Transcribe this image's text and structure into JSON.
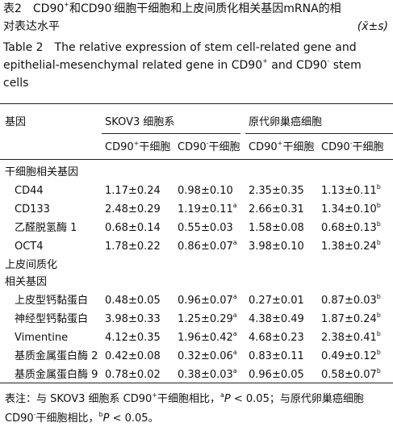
{
  "caption_cn": [
    [
      {
        "text": "表2　CD90"
      },
      {
        "sup": "+"
      },
      {
        "text": "和CD90"
      },
      {
        "sup": "-"
      },
      {
        "text": "细胞干细胞和上皮间质化相关基因mRNA的相"
      }
    ],
    [
      {
        "text": "对表达水平"
      }
    ]
  ],
  "stat": "(x̄±s)",
  "caption_en": [
    [
      {
        "text": "Table 2　The relative expression of stem cell-related gene and"
      }
    ],
    [
      {
        "text": "epithelial-mesenchymal related gene in CD90"
      },
      {
        "sup": "+"
      },
      {
        "text": " and CD90"
      },
      {
        "sup": "-"
      },
      {
        "text": " stem"
      }
    ],
    [
      {
        "text": "cells"
      }
    ]
  ],
  "table": {
    "header": {
      "gene": "基因",
      "groups": [
        "SKOV3 细胞系",
        "原代卵巢癌细胞"
      ],
      "subs": [
        [
          {
            "text": "CD90"
          },
          {
            "sup": "+"
          },
          {
            "text": "干细胞"
          }
        ],
        [
          {
            "text": "CD90"
          },
          {
            "sup": "-"
          },
          {
            "text": "干细胞"
          }
        ],
        [
          {
            "text": "CD90"
          },
          {
            "sup": "+"
          },
          {
            "text": "干细胞"
          }
        ],
        [
          {
            "text": "CD90"
          },
          {
            "sup": "-"
          },
          {
            "text": "干细胞"
          }
        ]
      ]
    },
    "sections": [
      {
        "title": [
          "干细胞相关基因"
        ],
        "rows": [
          {
            "gene": "CD44",
            "cells": [
              [
                {
                  "text": "1.17±0.24"
                }
              ],
              [
                {
                  "text": "0.98±0.10"
                }
              ],
              [
                {
                  "text": "2.35±0.35"
                }
              ],
              [
                {
                  "text": "1.13±0.11"
                },
                {
                  "sup": "b"
                }
              ]
            ]
          },
          {
            "gene": "CD133",
            "cells": [
              [
                {
                  "text": "2.48±0.29"
                }
              ],
              [
                {
                  "text": "1.19±0.11"
                },
                {
                  "sup": "a"
                }
              ],
              [
                {
                  "text": "2.66±0.31"
                }
              ],
              [
                {
                  "text": "1.34±0.10"
                },
                {
                  "sup": "b"
                }
              ]
            ]
          },
          {
            "gene": "乙醛脱氢酶 1",
            "cells": [
              [
                {
                  "text": "0.68±0.14"
                }
              ],
              [
                {
                  "text": "0.55±0.03"
                }
              ],
              [
                {
                  "text": "1.58±0.08"
                }
              ],
              [
                {
                  "text": "0.68±0.13"
                },
                {
                  "sup": "b"
                }
              ]
            ]
          },
          {
            "gene": "OCT4",
            "cells": [
              [
                {
                  "text": "1.78±0.22"
                }
              ],
              [
                {
                  "text": "0.86±0.07"
                },
                {
                  "sup": "a"
                }
              ],
              [
                {
                  "text": "3.98±0.10"
                }
              ],
              [
                {
                  "text": "1.38±0.24"
                },
                {
                  "sup": "b"
                }
              ]
            ]
          }
        ]
      },
      {
        "title": [
          "上皮间质化",
          "相关基因"
        ],
        "rows": [
          {
            "gene": "上皮型钙黏蛋白",
            "cells": [
              [
                {
                  "text": "0.48±0.05"
                }
              ],
              [
                {
                  "text": "0.96±0.07"
                },
                {
                  "sup": "a"
                }
              ],
              [
                {
                  "text": "0.27±0.01"
                }
              ],
              [
                {
                  "text": "0.87±0.03"
                },
                {
                  "sup": "b"
                }
              ]
            ]
          },
          {
            "gene": "神经型钙黏蛋白",
            "cells": [
              [
                {
                  "text": "3.98±0.33"
                }
              ],
              [
                {
                  "text": "1.25±0.29"
                },
                {
                  "sup": "a"
                }
              ],
              [
                {
                  "text": "4.38±0.49"
                }
              ],
              [
                {
                  "text": "1.87±0.24"
                },
                {
                  "sup": "b"
                }
              ]
            ]
          },
          {
            "gene": "Vimentine",
            "cells": [
              [
                {
                  "text": "4.12±0.35"
                }
              ],
              [
                {
                  "text": "1.96±0.42"
                },
                {
                  "sup": "a"
                }
              ],
              [
                {
                  "text": "4.68±0.23"
                }
              ],
              [
                {
                  "text": "2.38±0.41"
                },
                {
                  "sup": "b"
                }
              ]
            ]
          },
          {
            "gene": "基质金属蛋白酶 2",
            "cells": [
              [
                {
                  "text": "0.42±0.08"
                }
              ],
              [
                {
                  "text": "0.32±0.06"
                },
                {
                  "sup": "a"
                }
              ],
              [
                {
                  "text": "0.83±0.11"
                }
              ],
              [
                {
                  "text": "0.49±0.12"
                },
                {
                  "sup": "b"
                }
              ]
            ]
          },
          {
            "gene": "基质金属蛋白酶 9",
            "cells": [
              [
                {
                  "text": "0.78±0.02"
                }
              ],
              [
                {
                  "text": "0.38±0.03"
                },
                {
                  "sup": "a"
                }
              ],
              [
                {
                  "text": "0.96±0.05"
                }
              ],
              [
                {
                  "text": "0.58±0.07"
                },
                {
                  "sup": "b"
                }
              ]
            ]
          }
        ]
      }
    ]
  },
  "note": [
    [
      {
        "text": "表注：与 SKOV3 细胞系 CD90"
      },
      {
        "sup": "+"
      },
      {
        "text": "干细胞相比，"
      },
      {
        "sup": "a"
      },
      {
        "i": "P"
      },
      {
        "text": " < 0.05；与原代卵巢癌细胞"
      }
    ],
    [
      {
        "text": "CD90"
      },
      {
        "sup": "-"
      },
      {
        "text": "干细胞相比，"
      },
      {
        "sup": "b"
      },
      {
        "i": "P"
      },
      {
        "text": " < 0.05。"
      }
    ]
  ]
}
